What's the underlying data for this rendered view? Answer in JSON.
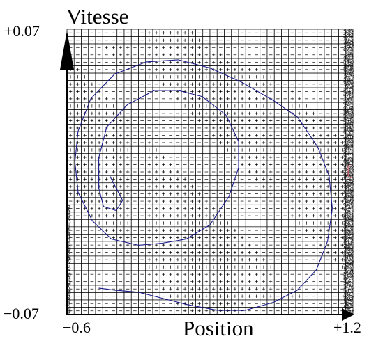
{
  "chart_data": {
    "type": "scatter",
    "xlabel": "Position",
    "ylabel": "Vitesse",
    "xlim": [
      -0.6,
      1.2
    ],
    "ylim": [
      -0.07,
      0.07
    ],
    "tick_labels": {
      "x_min": "−0.6",
      "x_max": "+1.2",
      "y_min": "−0.07",
      "y_max": "+0.07"
    },
    "grid": {
      "columns": 40,
      "rows": 39,
      "cell_symbols": [
        "+",
        "−"
      ]
    },
    "policy_rows_top_to_bottom": [
      "-----------+++++++----------------------",
      "-----------++++++++---------------------",
      "-----+++++++++++++++--------------------",
      "------++++++++++++++++------------------",
      "+------+++++++++++++++++----------------",
      "++-------++++++++++++++++++-------------",
      "+++--------++++++++++++++++++-----------",
      "++++---------++++++++++++++++++---------",
      "+++++---------++++++++++++++++++--------",
      "++++++---------++++++++++++++++++-------",
      "+++++++---------++++++++++++++++++------",
      "++++++++---------++++++++++++++++++-----",
      "+++++++++---------++++++++++++++++++----",
      "++++++++++---------++++++++++++++++++---",
      "+++++++++++---------++++++++++++++++++--",
      "++++++++++++---------++++++++++++++++++-",
      "+++++++++++++---------+++++++++++++++++-",
      "++++++++++++++---------++++++++++++++++-",
      "+++++++++++++++---------+++++++++++++++-",
      "++++++++++++++++---------++++++++++++++-",
      "+++++++++++++++++---------+++++++++++++-",
      "++++++++++++++++++---------++++++++++++-",
      "+++++++++++++++++++---------+++++++++++-",
      "-+++++++++++++++++++---------++++++++++-",
      "--+++++++++++++++++++---------+++++++++-",
      "---+++++++++++++++++++---------++++++++-",
      "----+++++++++++++++++++---------+++++++-",
      "-----+++++++++++++++++++---------++++++-",
      "------+++++++++++++++++++---------+++++-",
      "-------+++++++++++++++++++---------++++-",
      "--------+++++++++++++++++++---------+++-",
      "---------+++++++++++++++++++---------++-",
      "----------+++++++++++++++++++---------+-",
      "-----------+++++++++++++++++++----------",
      "------------+++++++++++++++++++---------",
      "-------------+++++++++++++++++++--------",
      "--------------+++++++++++++++++++-------",
      "---------------++++++++++---------------",
      "----------------++++++++----------------"
    ],
    "series": [
      {
        "color": "#1a1a8c",
        "x": [
          -0.33,
          -0.25,
          -0.29,
          -0.37,
          -0.4,
          -0.4,
          -0.35,
          -0.22,
          -0.05,
          0.1,
          0.25,
          0.4,
          0.48,
          0.48,
          0.42,
          0.3,
          0.15,
          0.0,
          -0.15,
          -0.32,
          -0.44,
          -0.53,
          -0.55,
          -0.53,
          -0.45,
          -0.3,
          -0.1,
          0.1,
          0.3,
          0.5,
          0.7,
          0.85,
          0.98,
          1.05,
          1.07,
          1.04,
          0.97,
          0.85,
          0.7,
          0.52,
          0.35,
          0.15,
          0.0,
          -0.15,
          -0.3,
          -0.4
        ],
        "y": [
          -0.002,
          -0.014,
          -0.019,
          -0.017,
          -0.008,
          0.007,
          0.022,
          0.033,
          0.04,
          0.04,
          0.037,
          0.028,
          0.015,
          0.002,
          -0.012,
          -0.026,
          -0.033,
          -0.035,
          -0.036,
          -0.033,
          -0.024,
          -0.01,
          0.005,
          0.02,
          0.036,
          0.048,
          0.054,
          0.055,
          0.051,
          0.044,
          0.035,
          0.027,
          0.012,
          -0.002,
          -0.018,
          -0.034,
          -0.048,
          -0.058,
          -0.064,
          -0.068,
          -0.068,
          -0.065,
          -0.062,
          -0.059,
          -0.058,
          -0.057
        ]
      },
      {
        "color": "#e06070",
        "x": [
          1.19,
          1.17,
          1.17,
          1.19,
          1.19
        ],
        "y": [
          0.003,
          0.003,
          -0.002,
          -0.003,
          -0.003
        ]
      }
    ],
    "noise_bands": [
      {
        "x_from": -0.6,
        "x_to": -0.58,
        "y_from": -0.07,
        "y_to": -0.016
      },
      {
        "x_from": 1.14,
        "x_to": 1.2,
        "y_from": -0.07,
        "y_to": 0.07
      }
    ]
  }
}
